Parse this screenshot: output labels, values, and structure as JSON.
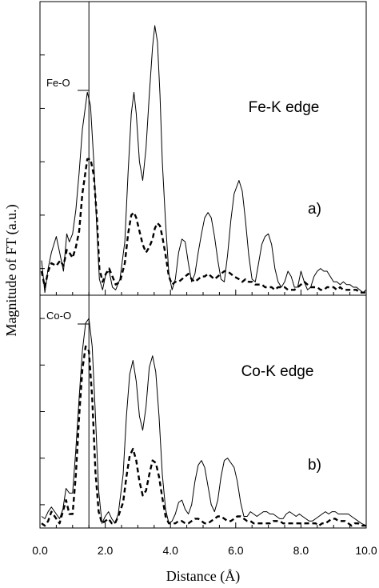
{
  "chart_data": {
    "type": "line",
    "xlabel": "Distance  (Å)",
    "ylabel": "Magnitude  of  FT  (a.u.)",
    "xlim": [
      0,
      10
    ],
    "x_ticks": [
      "0.0",
      "2.0",
      "4.0",
      "6.0",
      "8.0",
      "10.0"
    ],
    "x_tick_values": [
      0,
      2,
      4,
      6,
      8,
      10
    ],
    "x_minor_step": 0.5,
    "marker_line_x": 1.5,
    "y_tick_labels_shown": false,
    "panels": [
      {
        "id": "a",
        "title": "Fe-K edge",
        "panel_label": "a)",
        "peak_label": "Fe-O",
        "peak_label_x": 1.45,
        "ylim": [
          0,
          11
        ],
        "y_tick_values": [
          1,
          3,
          5,
          7,
          9,
          11
        ],
        "series": [
          {
            "style": "solid",
            "x": [
              0.05,
              0.15,
              0.25,
              0.35,
              0.5,
              0.62,
              0.72,
              0.82,
              0.9,
              1.0,
              1.1,
              1.2,
              1.3,
              1.45,
              1.55,
              1.65,
              1.75,
              1.82,
              1.92,
              2.02,
              2.12,
              2.22,
              2.32,
              2.45,
              2.6,
              2.7,
              2.8,
              2.88,
              2.95,
              3.05,
              3.15,
              3.25,
              3.35,
              3.45,
              3.52,
              3.6,
              3.68,
              3.75,
              3.85,
              3.95,
              4.05,
              4.15,
              4.25,
              4.35,
              4.45,
              4.55,
              4.65,
              4.75,
              4.85,
              4.95,
              5.05,
              5.15,
              5.25,
              5.35,
              5.45,
              5.55,
              5.65,
              5.75,
              5.85,
              5.95,
              6.1,
              6.2,
              6.3,
              6.4,
              6.5,
              6.6,
              6.7,
              6.8,
              6.9,
              7.0,
              7.1,
              7.2,
              7.3,
              7.4,
              7.5,
              7.6,
              7.7,
              7.8,
              7.9,
              8.0,
              8.1,
              8.2,
              8.3,
              8.4,
              8.5,
              8.6,
              8.7,
              8.8,
              8.9,
              9.0,
              9.1,
              9.2,
              9.3,
              9.4,
              9.5,
              9.6,
              9.7,
              9.8,
              9.9,
              10.0
            ],
            "y": [
              1.3,
              0.1,
              1.0,
              1.6,
              2.2,
              1.5,
              0.9,
              2.3,
              2.0,
              2.3,
              3.2,
              4.6,
              6.2,
              7.6,
              7.1,
              5.0,
              2.3,
              0.6,
              0.2,
              0.8,
              0.9,
              0.3,
              0.2,
              0.6,
              2.0,
              4.6,
              6.8,
              7.6,
              6.8,
              5.0,
              4.3,
              5.5,
              7.5,
              9.3,
              10.1,
              9.5,
              7.5,
              5.0,
              2.7,
              0.8,
              0.2,
              0.6,
              1.6,
              2.1,
              2.0,
              1.2,
              0.5,
              0.8,
              1.6,
              2.3,
              2.9,
              3.1,
              2.9,
              2.2,
              1.3,
              0.6,
              0.5,
              1.5,
              2.8,
              3.8,
              4.3,
              3.9,
              2.8,
              1.5,
              0.6,
              0.5,
              1.2,
              1.9,
              2.2,
              2.3,
              1.9,
              1.0,
              0.5,
              0.3,
              0.5,
              0.9,
              0.7,
              0.3,
              0.3,
              0.9,
              0.5,
              0.2,
              0.3,
              0.7,
              0.9,
              1.0,
              0.9,
              0.9,
              0.7,
              0.5,
              0.5,
              0.4,
              0.5,
              0.4,
              0.4,
              0.3,
              0.3,
              0.2,
              0.1,
              0.2
            ]
          },
          {
            "style": "dashed",
            "x": [
              0.05,
              0.15,
              0.25,
              0.35,
              0.5,
              0.62,
              0.72,
              0.82,
              0.9,
              1.0,
              1.1,
              1.2,
              1.3,
              1.45,
              1.55,
              1.65,
              1.75,
              1.82,
              1.92,
              2.02,
              2.12,
              2.22,
              2.32,
              2.45,
              2.6,
              2.7,
              2.8,
              2.88,
              2.95,
              3.05,
              3.15,
              3.25,
              3.35,
              3.45,
              3.52,
              3.6,
              3.68,
              3.75,
              3.85,
              3.95,
              4.05,
              4.15,
              4.25,
              4.35,
              4.45,
              4.55,
              4.65,
              4.75,
              4.85,
              4.95,
              5.05,
              5.15,
              5.25,
              5.35,
              5.45,
              5.55,
              5.65,
              5.75,
              5.85,
              5.95,
              6.1,
              6.2,
              6.3,
              6.4,
              6.5,
              6.6,
              6.7,
              6.8,
              6.9,
              7.0,
              7.1,
              7.2,
              7.3,
              7.4,
              7.5,
              7.6,
              7.7,
              7.8,
              7.9,
              8.0,
              8.1,
              8.2,
              8.3,
              8.4,
              8.5,
              8.6,
              8.7,
              8.8,
              8.9,
              9.0,
              9.1,
              9.2,
              9.3,
              9.4,
              9.5,
              9.6,
              9.7,
              9.8,
              9.9,
              10.0
            ],
            "y": [
              0.9,
              0.3,
              0.9,
              1.2,
              1.1,
              1.3,
              1.1,
              1.7,
              1.6,
              1.4,
              1.8,
              2.4,
              3.8,
              5.1,
              5.1,
              4.5,
              2.8,
              1.0,
              0.5,
              0.8,
              1.0,
              0.7,
              0.4,
              0.5,
              1.2,
              2.3,
              3.0,
              3.1,
              2.9,
              2.4,
              1.9,
              1.6,
              1.8,
              2.1,
              2.5,
              2.7,
              2.6,
              2.2,
              1.5,
              0.7,
              0.4,
              0.5,
              0.5,
              0.6,
              0.7,
              0.8,
              0.6,
              0.5,
              0.6,
              0.7,
              0.7,
              0.8,
              0.7,
              0.6,
              0.7,
              0.8,
              0.9,
              0.9,
              0.8,
              0.7,
              0.6,
              0.5,
              0.6,
              0.5,
              0.5,
              0.4,
              0.4,
              0.4,
              0.3,
              0.3,
              0.3,
              0.2,
              0.3,
              0.3,
              0.3,
              0.2,
              0.2,
              0.2,
              0.3,
              0.4,
              0.5,
              0.4,
              0.3,
              0.3,
              0.3,
              0.2,
              0.2,
              0.3,
              0.3,
              0.3,
              0.2,
              0.3,
              0.2,
              0.2,
              0.2,
              0.2,
              0.2,
              0.1,
              0.1,
              0.1
            ]
          }
        ]
      },
      {
        "id": "b",
        "title": "Co-K edge",
        "panel_label": "b)",
        "peak_label": "Co-O",
        "peak_label_x": 1.45,
        "ylim": [
          0,
          10
        ],
        "y_tick_values": [
          1,
          3,
          5,
          7,
          9
        ],
        "series": [
          {
            "style": "solid",
            "x": [
              0.05,
              0.15,
              0.25,
              0.35,
              0.5,
              0.6,
              0.7,
              0.8,
              0.9,
              1.0,
              1.1,
              1.2,
              1.3,
              1.4,
              1.5,
              1.6,
              1.7,
              1.8,
              1.9,
              2.0,
              2.1,
              2.2,
              2.3,
              2.4,
              2.55,
              2.65,
              2.75,
              2.85,
              2.95,
              3.05,
              3.15,
              3.25,
              3.35,
              3.45,
              3.55,
              3.65,
              3.75,
              3.85,
              3.95,
              4.05,
              4.15,
              4.25,
              4.35,
              4.45,
              4.55,
              4.65,
              4.75,
              4.85,
              4.95,
              5.05,
              5.15,
              5.25,
              5.35,
              5.45,
              5.55,
              5.65,
              5.75,
              5.85,
              5.95,
              6.05,
              6.15,
              6.25,
              6.35,
              6.45,
              6.55,
              6.65,
              6.75,
              6.85,
              6.95,
              7.05,
              7.15,
              7.25,
              7.35,
              7.45,
              7.55,
              7.65,
              7.75,
              7.85,
              7.95,
              8.05,
              8.15,
              8.25,
              8.35,
              8.45,
              8.55,
              8.65,
              8.75,
              8.85,
              8.95,
              9.05,
              9.15,
              9.25,
              9.35,
              9.45,
              9.55,
              9.65,
              9.75,
              9.85,
              10.0
            ],
            "y": [
              0.5,
              0.4,
              0.7,
              0.9,
              0.6,
              0.4,
              0.8,
              1.7,
              1.5,
              1.5,
              3.4,
              5.6,
              7.6,
              8.8,
              9.0,
              7.8,
              4.8,
              1.6,
              0.2,
              0.5,
              0.7,
              0.4,
              0.2,
              0.6,
              2.3,
              4.8,
              6.6,
              7.2,
              6.3,
              4.8,
              4.2,
              5.2,
              6.9,
              7.4,
              6.7,
              4.8,
              2.3,
              0.8,
              0.2,
              0.3,
              0.6,
              1.1,
              1.2,
              0.8,
              0.6,
              1.0,
              2.0,
              2.7,
              2.9,
              2.6,
              1.8,
              1.0,
              0.7,
              1.2,
              2.2,
              2.9,
              3.0,
              2.8,
              2.6,
              2.0,
              1.1,
              0.5,
              0.5,
              0.7,
              0.6,
              0.5,
              0.6,
              0.7,
              0.7,
              0.6,
              0.6,
              0.5,
              0.4,
              0.4,
              0.6,
              0.7,
              0.6,
              0.5,
              0.6,
              0.5,
              0.4,
              0.3,
              0.3,
              0.4,
              0.5,
              0.6,
              0.7,
              0.6,
              0.7,
              0.7,
              0.6,
              0.6,
              0.6,
              0.6,
              0.5,
              0.4,
              0.3,
              0.2,
              0.1
            ]
          },
          {
            "style": "dashed",
            "x": [
              0.05,
              0.15,
              0.25,
              0.35,
              0.5,
              0.6,
              0.7,
              0.8,
              0.9,
              1.0,
              1.1,
              1.2,
              1.3,
              1.4,
              1.5,
              1.6,
              1.7,
              1.8,
              1.9,
              2.0,
              2.1,
              2.2,
              2.3,
              2.4,
              2.55,
              2.65,
              2.75,
              2.85,
              2.95,
              3.05,
              3.15,
              3.25,
              3.35,
              3.45,
              3.55,
              3.65,
              3.75,
              3.85,
              3.95,
              4.05,
              4.15,
              4.25,
              4.35,
              4.45,
              4.55,
              4.65,
              4.75,
              4.85,
              4.95,
              5.05,
              5.15,
              5.25,
              5.35,
              5.45,
              5.55,
              5.65,
              5.75,
              5.85,
              5.95,
              6.05,
              6.15,
              6.25,
              6.35,
              6.45,
              6.55,
              6.65,
              6.75,
              6.85,
              6.95,
              7.05,
              7.15,
              7.25,
              7.35,
              7.45,
              7.55,
              7.65,
              7.75,
              7.85,
              7.95,
              8.05,
              8.15,
              8.25,
              8.35,
              8.45,
              8.55,
              8.65,
              8.75,
              8.85,
              8.95,
              9.05,
              9.15,
              9.25,
              9.35,
              9.45,
              9.55,
              9.65,
              9.75,
              9.85,
              10.0
            ],
            "y": [
              0.2,
              0.1,
              0.3,
              0.7,
              0.4,
              0.2,
              0.7,
              1.2,
              0.6,
              0.6,
              2.3,
              4.8,
              6.8,
              7.8,
              7.6,
              5.6,
              2.4,
              0.7,
              0.2,
              0.3,
              0.4,
              0.2,
              0.2,
              0.5,
              1.1,
              2.2,
              3.1,
              3.4,
              2.9,
              2.0,
              1.4,
              1.6,
              2.3,
              2.9,
              2.8,
              2.2,
              1.3,
              0.5,
              0.2,
              0.2,
              0.2,
              0.3,
              0.3,
              0.2,
              0.2,
              0.3,
              0.4,
              0.4,
              0.3,
              0.2,
              0.2,
              0.3,
              0.4,
              0.5,
              0.5,
              0.4,
              0.3,
              0.3,
              0.4,
              0.5,
              0.5,
              0.4,
              0.3,
              0.3,
              0.2,
              0.2,
              0.2,
              0.2,
              0.2,
              0.2,
              0.3,
              0.3,
              0.3,
              0.2,
              0.2,
              0.2,
              0.2,
              0.2,
              0.2,
              0.2,
              0.2,
              0.2,
              0.2,
              0.2,
              0.1,
              0.2,
              0.2,
              0.3,
              0.4,
              0.4,
              0.3,
              0.3,
              0.3,
              0.2,
              0.1,
              0.2,
              0.2,
              0.1,
              0.1
            ]
          }
        ]
      }
    ]
  }
}
